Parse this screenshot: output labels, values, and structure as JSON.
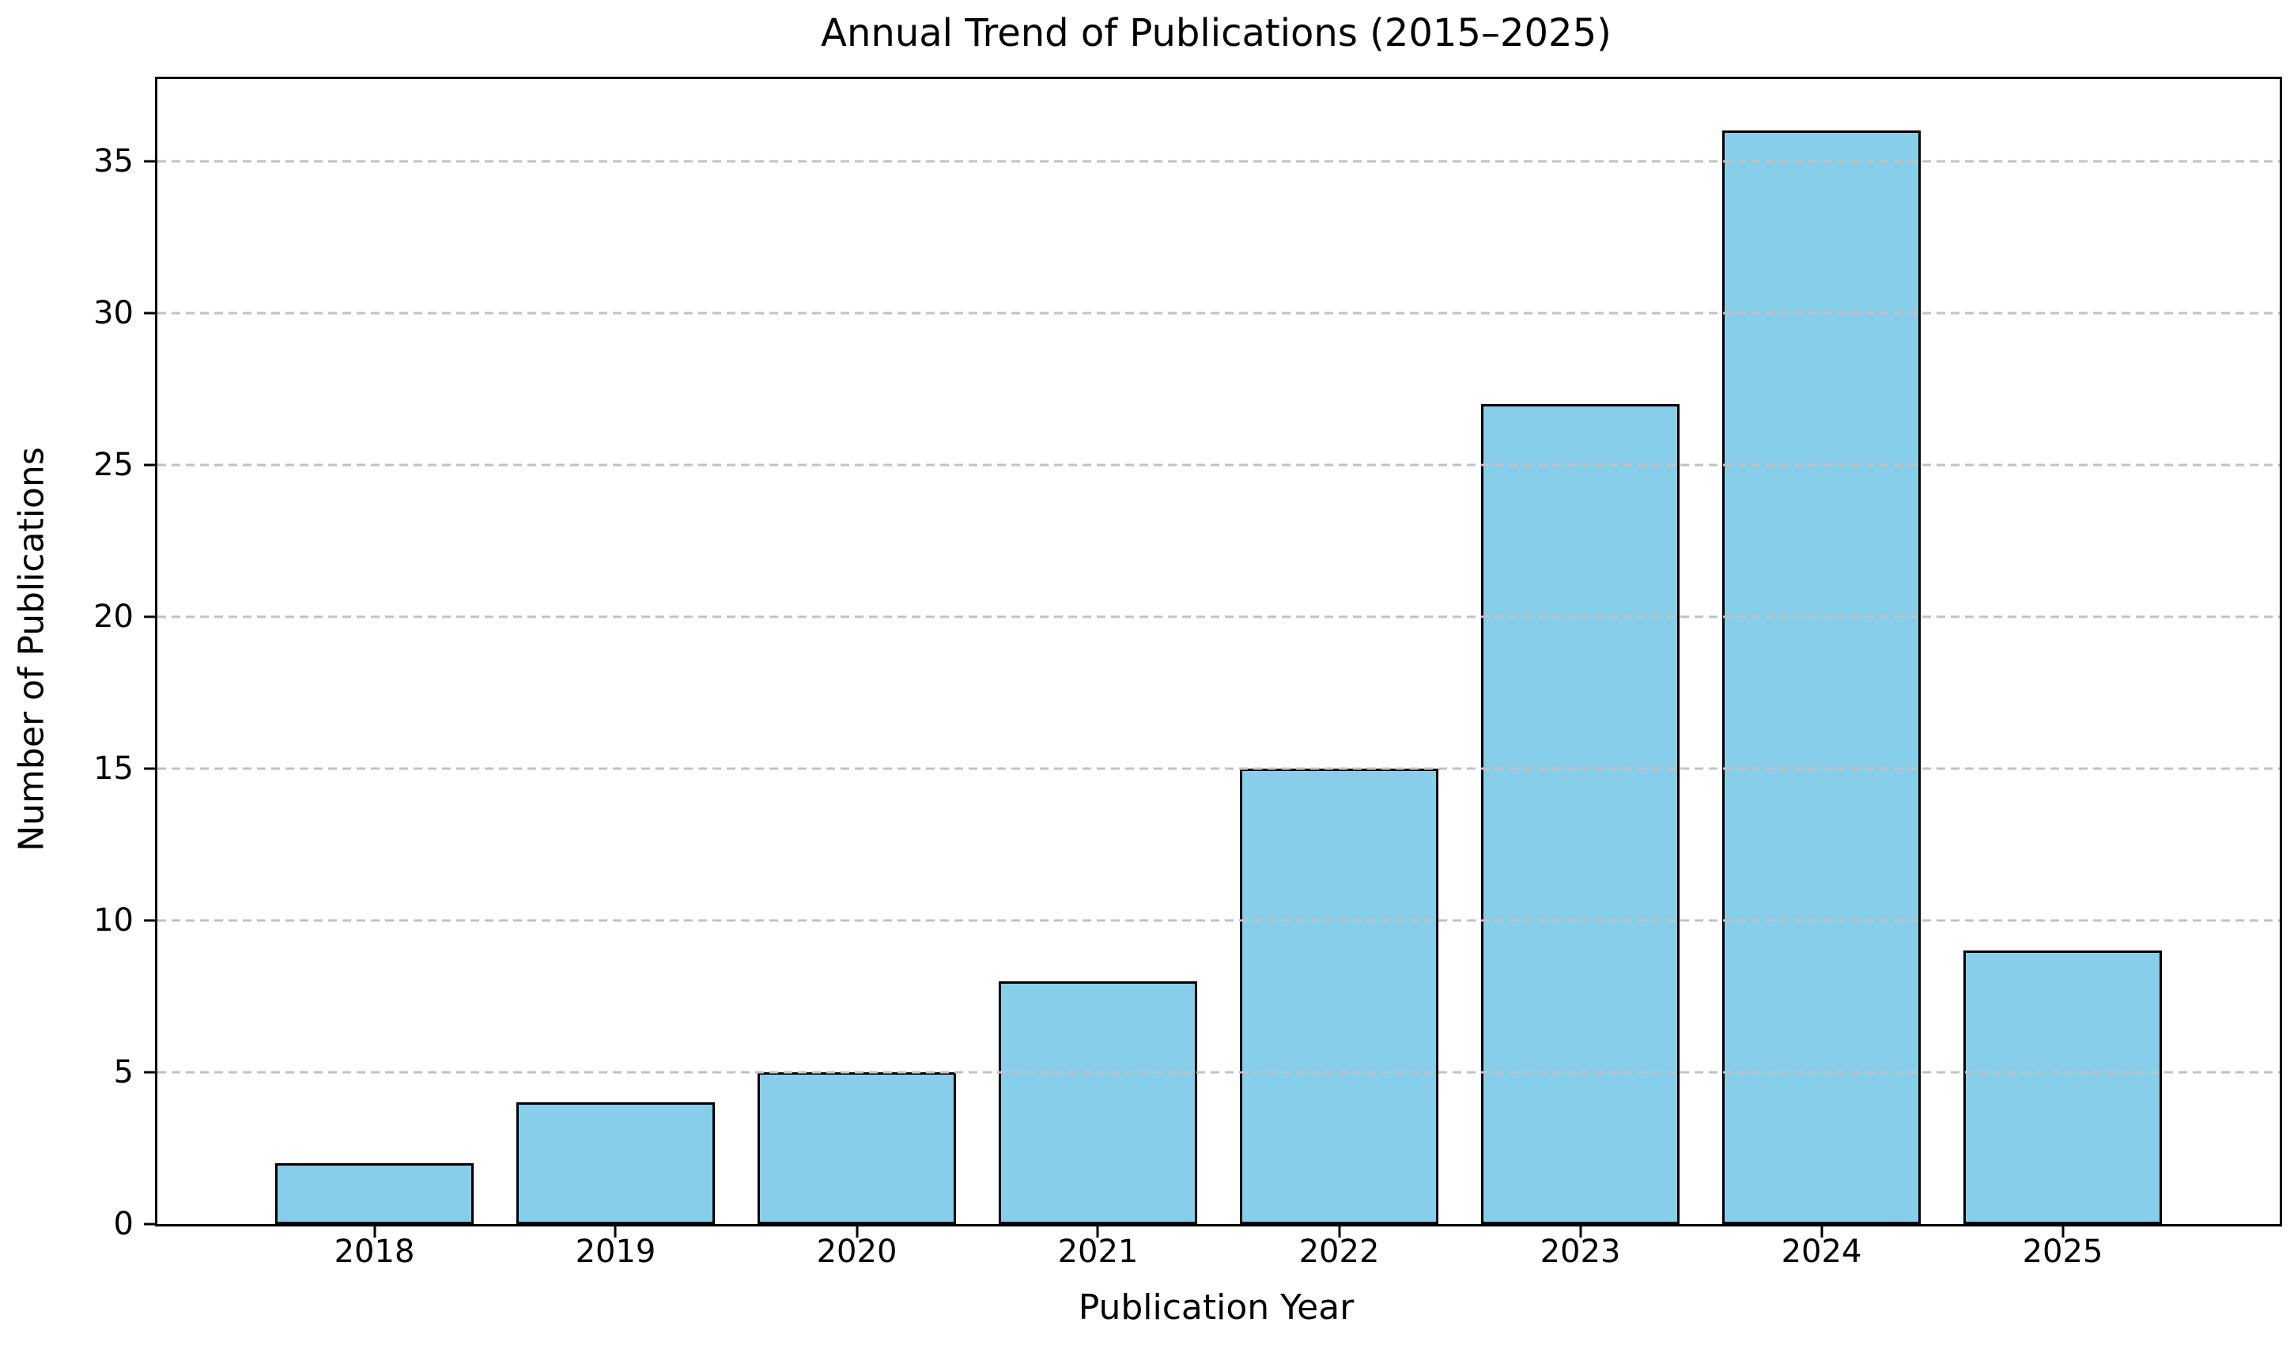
{
  "chart_data": {
    "type": "bar",
    "title": "Annual Trend of Publications (2015–2025)",
    "xlabel": "Publication Year",
    "ylabel": "Number of Publications",
    "categories": [
      "2018",
      "2019",
      "2020",
      "2021",
      "2022",
      "2023",
      "2024",
      "2025"
    ],
    "values": [
      2,
      4,
      5,
      8,
      15,
      27,
      36,
      9
    ],
    "yticks": [
      0,
      5,
      10,
      15,
      20,
      25,
      30,
      35
    ],
    "ylim": [
      0,
      37.7
    ],
    "grid": "horizontal dashed, drawn above bars",
    "legend": "none",
    "colors": {
      "bar_fill": "#87CEEB",
      "bar_edge": "#000000",
      "grid": "#c2c2c2",
      "text": "#000000",
      "background": "#ffffff"
    }
  }
}
